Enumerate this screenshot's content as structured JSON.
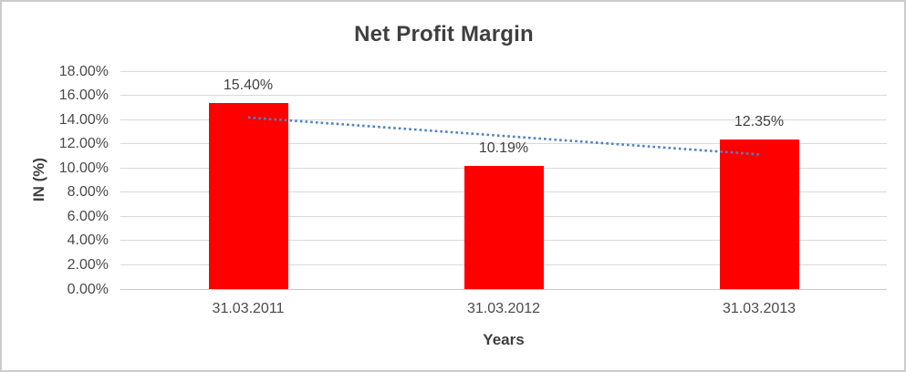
{
  "frame": {
    "background_color": "#ffffff",
    "border_color": "#cccccc"
  },
  "chart_data": {
    "type": "bar",
    "title": "Net Profit Margin",
    "xlabel": "Years",
    "ylabel": "IN (%)",
    "categories": [
      "31.03.2011",
      "31.03.2012",
      "31.03.2013"
    ],
    "values": [
      15.4,
      10.19,
      12.35
    ],
    "data_labels": [
      "15.40%",
      "10.19%",
      "12.35%"
    ],
    "ylim": [
      0,
      18
    ],
    "ytick_step": 2,
    "ytick_labels_top_to_bottom": [
      "18.00%",
      "16.00%",
      "14.00%",
      "12.00%",
      "10.00%",
      "8.00%",
      "6.00%",
      "4.00%",
      "2.00%",
      "0.00%"
    ],
    "grid": true,
    "legend": "none",
    "bar_color": "#ff0000",
    "gridline_color": "#d9d9d9",
    "trendline": {
      "type": "linear",
      "style": "dotted",
      "color": "#4e82c4",
      "start_value": 14.17,
      "end_value": 11.12
    }
  }
}
